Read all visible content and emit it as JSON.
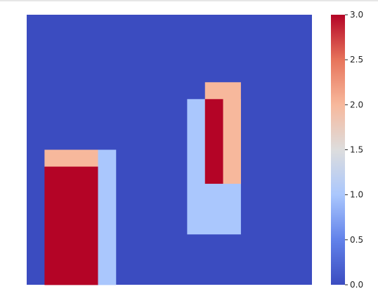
{
  "chart_data": {
    "type": "heatmap",
    "grid": {
      "rows": 16,
      "cols": 16
    },
    "value_range": [
      0,
      3
    ],
    "colormap": "coolwarm",
    "background_value": 0,
    "regions": [
      {
        "row_start": 8,
        "row_end": 9,
        "col_start": 1,
        "col_end": 4,
        "value": 2
      },
      {
        "row_start": 9,
        "row_end": 16,
        "col_start": 1,
        "col_end": 4,
        "value": 3
      },
      {
        "row_start": 8,
        "row_end": 16,
        "col_start": 4,
        "col_end": 5,
        "value": 1
      },
      {
        "row_start": 5,
        "row_end": 13,
        "col_start": 9,
        "col_end": 12,
        "value": 1
      },
      {
        "row_start": 4,
        "row_end": 10,
        "col_start": 10,
        "col_end": 12,
        "value": 2
      },
      {
        "row_start": 5,
        "row_end": 10,
        "col_start": 10,
        "col_end": 11,
        "value": 3
      }
    ],
    "colorbar": {
      "ticks": [
        0.0,
        0.5,
        1.0,
        1.5,
        2.0,
        2.5,
        3.0
      ],
      "tick_labels": [
        "0.0",
        "0.5",
        "1.0",
        "1.5",
        "2.0",
        "2.5",
        "3.0"
      ]
    },
    "colors": {
      "0": "#3b4cc0",
      "1": "#aac7fd",
      "2": "#f7b89c",
      "3": "#b40426"
    }
  }
}
